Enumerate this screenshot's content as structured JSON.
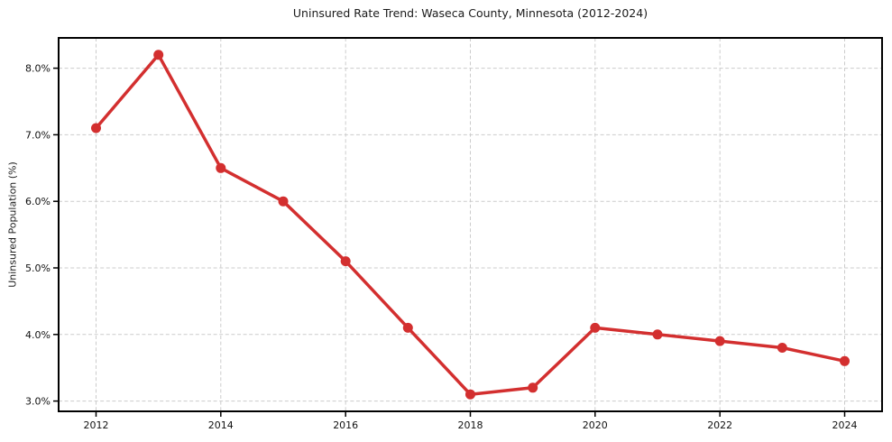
{
  "chart_data": {
    "type": "line",
    "title": "Uninsured Rate Trend: Waseca County, Minnesota (2012-2024)",
    "xlabel": "",
    "ylabel": "Uninsured Population (%)",
    "x": [
      2012,
      2013,
      2014,
      2015,
      2016,
      2017,
      2018,
      2019,
      2020,
      2021,
      2022,
      2023,
      2024
    ],
    "values": [
      7.1,
      8.2,
      6.5,
      6.0,
      5.1,
      4.1,
      3.1,
      3.2,
      4.1,
      4.0,
      3.9,
      3.8,
      3.6
    ],
    "xlim": [
      2011.4,
      2024.6
    ],
    "ylim": [
      2.845,
      8.455
    ],
    "xticks": [
      {
        "value": 2012,
        "label": "2012"
      },
      {
        "value": 2014,
        "label": "2014"
      },
      {
        "value": 2016,
        "label": "2016"
      },
      {
        "value": 2018,
        "label": "2018"
      },
      {
        "value": 2020,
        "label": "2020"
      },
      {
        "value": 2022,
        "label": "2022"
      },
      {
        "value": 2024,
        "label": "2024"
      }
    ],
    "yticks": [
      {
        "value": 3.0,
        "label": "3.0%"
      },
      {
        "value": 4.0,
        "label": "4.0%"
      },
      {
        "value": 5.0,
        "label": "5.0%"
      },
      {
        "value": 6.0,
        "label": "6.0%"
      },
      {
        "value": 7.0,
        "label": "7.0%"
      },
      {
        "value": 8.0,
        "label": "8.0%"
      }
    ],
    "grid": "dashed",
    "legend": "none",
    "line_color": "#d32f2f",
    "marker_color": "#d32f2f",
    "grid_color": "#cccccc"
  }
}
